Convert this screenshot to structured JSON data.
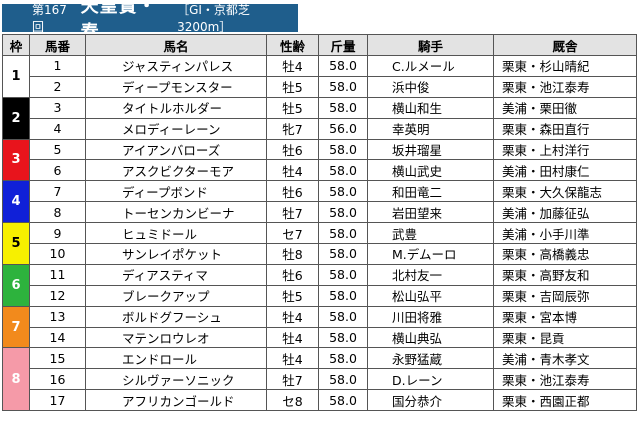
{
  "header": {
    "round": "第167回",
    "race_name": "天皇賞・春",
    "race_info": "［GⅠ・京都芝3200m］"
  },
  "columns": [
    "枠",
    "馬番",
    "馬名",
    "性齢",
    "斤量",
    "騎手",
    "厩舎"
  ],
  "waku_colors": [
    {
      "waku": "1",
      "bg": "#ffffff",
      "fg": "#000000"
    },
    {
      "waku": "2",
      "bg": "#000000",
      "fg": "#ffffff"
    },
    {
      "waku": "3",
      "bg": "#e8141c",
      "fg": "#ffffff"
    },
    {
      "waku": "4",
      "bg": "#1020d8",
      "fg": "#ffffff"
    },
    {
      "waku": "5",
      "bg": "#f7f000",
      "fg": "#000000"
    },
    {
      "waku": "6",
      "bg": "#2db33d",
      "fg": "#ffffff"
    },
    {
      "waku": "7",
      "bg": "#f28a1c",
      "fg": "#ffffff"
    },
    {
      "waku": "8",
      "bg": "#f59aa8",
      "fg": "#ffffff"
    }
  ],
  "rows": [
    {
      "waku": "1",
      "num": "1",
      "horse": "ジャスティンパレス",
      "sexage": "牡4",
      "weight": "58.0",
      "jockey": "C.ルメール",
      "trainer": "栗東・杉山晴紀"
    },
    {
      "waku": "1",
      "num": "2",
      "horse": "ディープモンスター",
      "sexage": "牡5",
      "weight": "58.0",
      "jockey": "浜中俊",
      "trainer": "栗東・池江泰寿"
    },
    {
      "waku": "2",
      "num": "3",
      "horse": "タイトルホルダー",
      "sexage": "牡5",
      "weight": "58.0",
      "jockey": "横山和生",
      "trainer": "美浦・栗田徹"
    },
    {
      "waku": "2",
      "num": "4",
      "horse": "メロディーレーン",
      "sexage": "牝7",
      "weight": "56.0",
      "jockey": "幸英明",
      "trainer": "栗東・森田直行"
    },
    {
      "waku": "3",
      "num": "5",
      "horse": "アイアンバローズ",
      "sexage": "牡6",
      "weight": "58.0",
      "jockey": "坂井瑠星",
      "trainer": "栗東・上村洋行"
    },
    {
      "waku": "3",
      "num": "6",
      "horse": "アスクビクターモア",
      "sexage": "牡4",
      "weight": "58.0",
      "jockey": "横山武史",
      "trainer": "美浦・田村康仁"
    },
    {
      "waku": "4",
      "num": "7",
      "horse": "ディープボンド",
      "sexage": "牡6",
      "weight": "58.0",
      "jockey": "和田竜二",
      "trainer": "栗東・大久保龍志"
    },
    {
      "waku": "4",
      "num": "8",
      "horse": "トーセンカンビーナ",
      "sexage": "牡7",
      "weight": "58.0",
      "jockey": "岩田望来",
      "trainer": "美浦・加藤征弘"
    },
    {
      "waku": "5",
      "num": "9",
      "horse": "ヒュミドール",
      "sexage": "セ7",
      "weight": "58.0",
      "jockey": "武豊",
      "trainer": "美浦・小手川準"
    },
    {
      "waku": "5",
      "num": "10",
      "horse": "サンレイポケット",
      "sexage": "牡8",
      "weight": "58.0",
      "jockey": "M.デムーロ",
      "trainer": "栗東・高橋義忠"
    },
    {
      "waku": "6",
      "num": "11",
      "horse": "ディアスティマ",
      "sexage": "牡6",
      "weight": "58.0",
      "jockey": "北村友一",
      "trainer": "栗東・高野友和"
    },
    {
      "waku": "6",
      "num": "12",
      "horse": "ブレークアップ",
      "sexage": "牡5",
      "weight": "58.0",
      "jockey": "松山弘平",
      "trainer": "栗東・吉岡辰弥"
    },
    {
      "waku": "7",
      "num": "13",
      "horse": "ボルドグフーシュ",
      "sexage": "牡4",
      "weight": "58.0",
      "jockey": "川田将雅",
      "trainer": "栗東・宮本博"
    },
    {
      "waku": "7",
      "num": "14",
      "horse": "マテンロウレオ",
      "sexage": "牡4",
      "weight": "58.0",
      "jockey": "横山典弘",
      "trainer": "栗東・昆貢"
    },
    {
      "waku": "8",
      "num": "15",
      "horse": "エンドロール",
      "sexage": "牡4",
      "weight": "58.0",
      "jockey": "永野猛蔵",
      "trainer": "美浦・青木孝文"
    },
    {
      "waku": "8",
      "num": "16",
      "horse": "シルヴァーソニック",
      "sexage": "牡7",
      "weight": "58.0",
      "jockey": "D.レーン",
      "trainer": "栗東・池江泰寿"
    },
    {
      "waku": "8",
      "num": "17",
      "horse": "アフリカンゴールド",
      "sexage": "セ8",
      "weight": "58.0",
      "jockey": "国分恭介",
      "trainer": "栗東・西園正都"
    }
  ]
}
